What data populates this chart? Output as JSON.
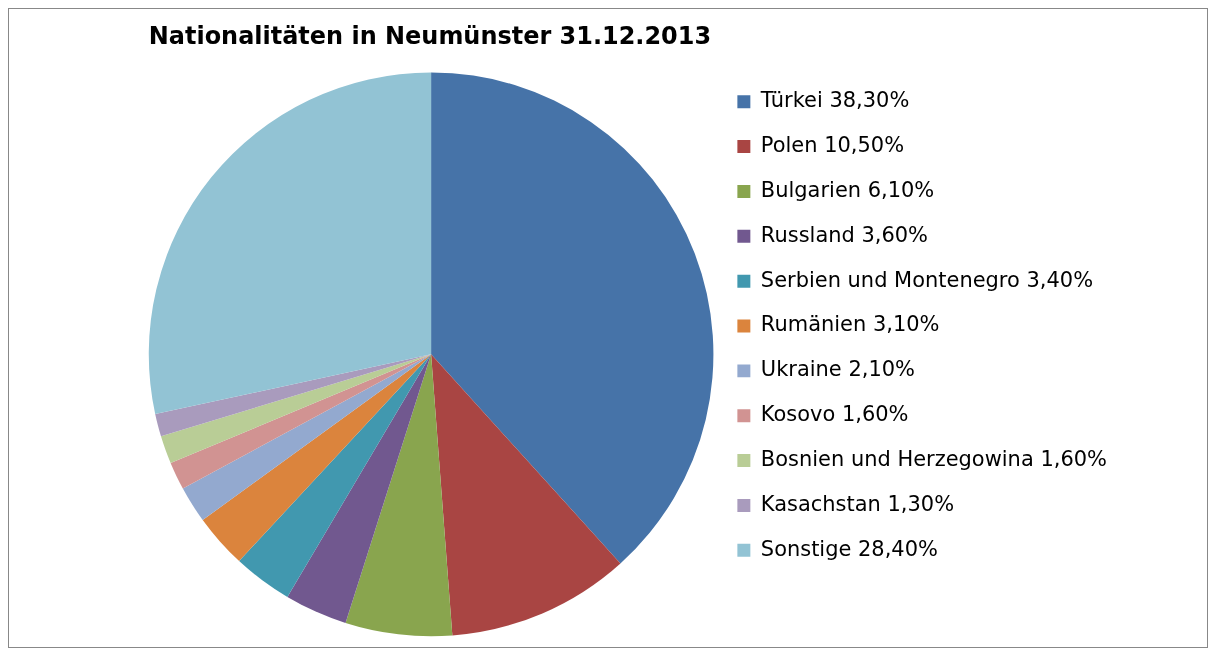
{
  "chart_data": {
    "type": "pie",
    "title": "Nationalitäten in Neumünster 31.12.2013",
    "categories": [
      "Türkei",
      "Polen",
      "Bulgarien",
      "Russland",
      "Serbien und Montenegro",
      "Rumänien",
      "Ukraine",
      "Kosovo",
      "Bosnien und Herzegowina",
      "Kasachstan",
      "Sonstige"
    ],
    "values": [
      38.3,
      10.5,
      6.1,
      3.6,
      3.4,
      3.1,
      2.1,
      1.6,
      1.6,
      1.3,
      28.4
    ],
    "value_labels": [
      "38,30%",
      "10,50%",
      "6,10%",
      "3,60%",
      "3,40%",
      "3,10%",
      "2,10%",
      "1,60%",
      "1,60%",
      "1,30%",
      "28,40%"
    ],
    "colors": [
      "#4673a8",
      "#a94543",
      "#89a54e",
      "#71588f",
      "#4198af",
      "#db843d",
      "#93a9cf",
      "#d19392",
      "#b9cd96",
      "#a99bbd",
      "#92c3d4"
    ],
    "legend": "right"
  }
}
